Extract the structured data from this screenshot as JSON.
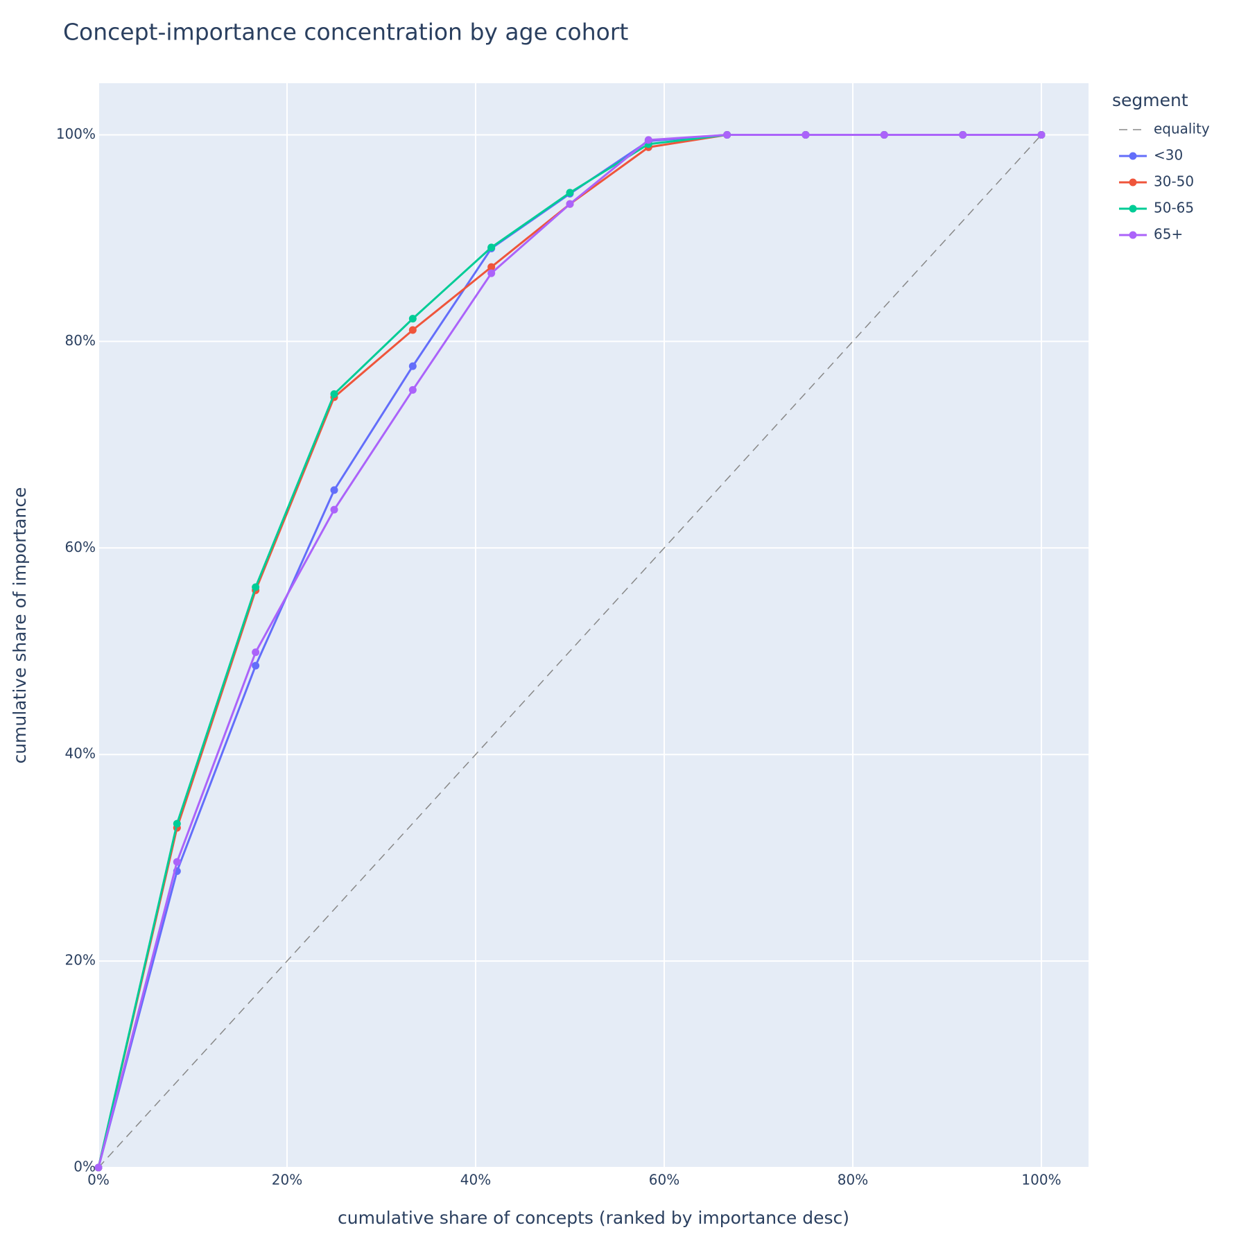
{
  "chart_data": {
    "type": "line",
    "title": "Concept-importance concentration by age cohort",
    "x_label": "cumulative share of concepts (ranked by importance desc)",
    "y_label": "cumulative share of importance",
    "legend_title": "segment",
    "legend_position": "right",
    "grid": true,
    "xlim": [
      0,
      105
    ],
    "ylim": [
      0,
      105
    ],
    "xticks": [
      {
        "value": 0,
        "label": "0%"
      },
      {
        "value": 20,
        "label": "20%"
      },
      {
        "value": 40,
        "label": "40%"
      },
      {
        "value": 60,
        "label": "60%"
      },
      {
        "value": 80,
        "label": "80%"
      },
      {
        "value": 100,
        "label": "100%"
      }
    ],
    "yticks": [
      {
        "value": 0,
        "label": "0%"
      },
      {
        "value": 20,
        "label": "20%"
      },
      {
        "value": 40,
        "label": "40%"
      },
      {
        "value": 60,
        "label": "60%"
      },
      {
        "value": 80,
        "label": "80%"
      },
      {
        "value": 100,
        "label": "100%"
      }
    ],
    "series": [
      {
        "name": "equality",
        "color": "#888888",
        "dash": true,
        "markers": false,
        "x": [
          0,
          100
        ],
        "values": [
          0,
          100
        ]
      },
      {
        "name": "<30",
        "color": "#636efa",
        "dash": false,
        "markers": true,
        "x": [
          0,
          8.333,
          16.667,
          25,
          33.333,
          41.667,
          50,
          58.333,
          66.667,
          75,
          83.333,
          91.667,
          100
        ],
        "values": [
          0,
          28.7,
          48.6,
          65.6,
          77.6,
          89.0,
          94.3,
          99.4,
          100,
          100,
          100,
          100,
          100
        ]
      },
      {
        "name": "30-50",
        "color": "#EF553B",
        "dash": false,
        "markers": true,
        "x": [
          0,
          8.333,
          16.667,
          25,
          33.333,
          41.667,
          50,
          58.333,
          66.667,
          75,
          83.333,
          91.667,
          100
        ],
        "values": [
          0,
          32.9,
          55.9,
          74.6,
          81.1,
          87.2,
          93.3,
          98.8,
          100,
          100,
          100,
          100,
          100
        ]
      },
      {
        "name": "50-65",
        "color": "#00cc96",
        "dash": false,
        "markers": true,
        "x": [
          0,
          8.333,
          16.667,
          25,
          33.333,
          41.667,
          50,
          58.333,
          66.667,
          75,
          83.333,
          91.667,
          100
        ],
        "values": [
          0,
          33.3,
          56.2,
          74.9,
          82.2,
          89.1,
          94.4,
          99.1,
          100,
          100,
          100,
          100,
          100
        ]
      },
      {
        "name": "65+",
        "color": "#ab63fa",
        "dash": false,
        "markers": true,
        "x": [
          0,
          8.333,
          16.667,
          25,
          33.333,
          41.667,
          50,
          58.333,
          66.667,
          75,
          83.333,
          91.667,
          100
        ],
        "values": [
          0,
          29.6,
          49.9,
          63.7,
          75.3,
          86.6,
          93.3,
          99.5,
          100,
          100,
          100,
          100,
          100
        ]
      }
    ]
  }
}
